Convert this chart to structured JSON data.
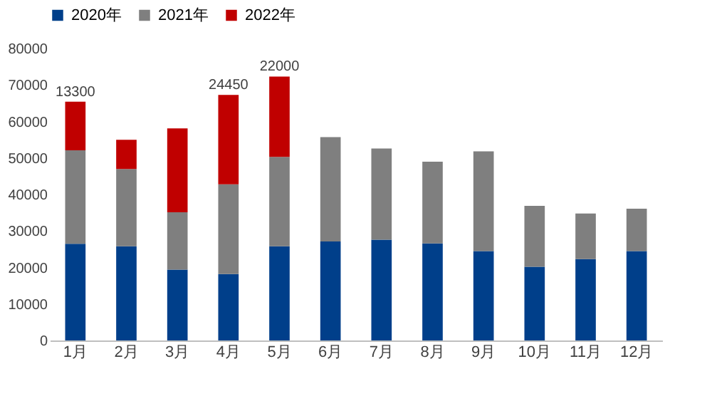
{
  "chart_data": {
    "type": "bar",
    "stacked": true,
    "categories": [
      "1月",
      "2月",
      "3月",
      "4月",
      "5月",
      "6月",
      "7月",
      "8月",
      "9月",
      "10月",
      "11月",
      "12月"
    ],
    "series": [
      {
        "name": "2020年",
        "color": "#003f8a",
        "values": [
          26500,
          25800,
          19400,
          18200,
          25800,
          27100,
          27600,
          26600,
          24500,
          20200,
          22300,
          24500
        ]
      },
      {
        "name": "2021年",
        "color": "#7f7f7f",
        "values": [
          25600,
          21200,
          15700,
          24600,
          24500,
          28600,
          25000,
          22400,
          27300,
          16700,
          12500,
          11600
        ]
      },
      {
        "name": "2022年",
        "color": "#c00000",
        "values": [
          13300,
          8000,
          23000,
          24450,
          22000,
          null,
          null,
          null,
          null,
          null,
          null,
          null
        ],
        "value_labels": [
          "13300",
          null,
          null,
          "24450",
          "22000",
          null,
          null,
          null,
          null,
          null,
          null,
          null
        ]
      }
    ],
    "ylim": [
      0,
      80000
    ],
    "yticks": [
      0,
      10000,
      20000,
      30000,
      40000,
      50000,
      60000,
      70000,
      80000
    ],
    "grid": false,
    "legend": "top"
  }
}
